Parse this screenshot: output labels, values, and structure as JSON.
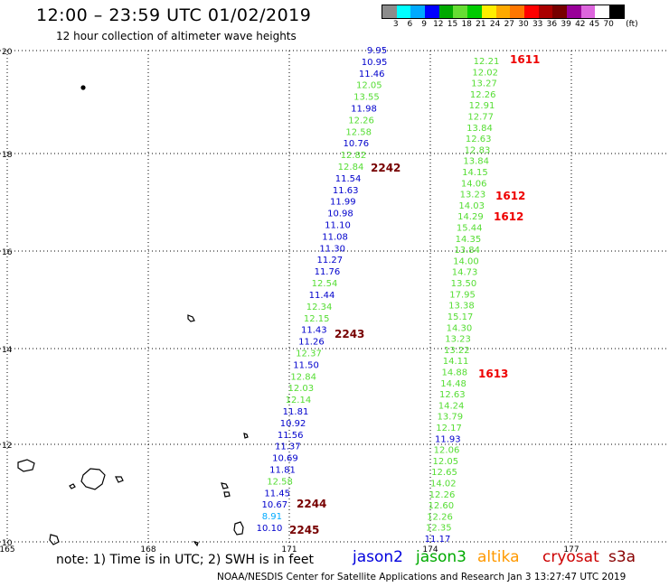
{
  "header": {
    "title": "12:00 – 23:59 UTC 01/02/2019",
    "subtitle": "12 hour collection of altimeter wave heights"
  },
  "legend": {
    "unit_label": "(ft)",
    "colors": [
      "#8c8c8c",
      "#00ffff",
      "#00aaff",
      "#0000ff",
      "#00aa00",
      "#66dd33",
      "#00cc00",
      "#ffee00",
      "#ffaa00",
      "#ff7700",
      "#ff0000",
      "#aa0000",
      "#770000",
      "#990099",
      "#dd66dd",
      "#ffffff",
      "#000000"
    ],
    "labels": [
      "3",
      "6",
      "9",
      "12",
      "15",
      "18",
      "21",
      "24",
      "27",
      "30",
      "33",
      "36",
      "39",
      "42",
      "45",
      "70"
    ]
  },
  "map": {
    "lat_labels": [
      "20",
      "18",
      "16",
      "14",
      "12",
      "10"
    ],
    "lon_labels": [
      "165",
      "168",
      "171",
      "174",
      "177"
    ],
    "jason2_values": [
      "9.95",
      "10.95",
      "11.46",
      "12.05",
      "13.55",
      "11.98",
      "12.26",
      "12.58",
      "10.76",
      "12.82",
      "12.84",
      "11.54",
      "11.63",
      "11.99",
      "10.98",
      "11.10",
      "11.08",
      "11.30",
      "11.27",
      "11.76",
      "12.54",
      "11.44",
      "12.34",
      "12.15",
      "11.43",
      "11.26",
      "12.37",
      "11.50",
      "12.84",
      "12.03",
      "12.14",
      "11.81",
      "10.92",
      "11.56",
      "11.37",
      "10.69",
      "11.81",
      "12.58",
      "11.45",
      "10.67",
      "8.91",
      "10.10"
    ],
    "jason3_values": [
      "12.21",
      "12.02",
      "13.27",
      "12.26",
      "12.91",
      "12.77",
      "13.84",
      "12.63",
      "12.83",
      "13.84",
      "14.15",
      "14.06",
      "13.23",
      "14.03",
      "14.29",
      "15.44",
      "14.35",
      "13.84",
      "14.00",
      "14.73",
      "13.50",
      "17.95",
      "13.38",
      "15.17",
      "14.30",
      "13.23",
      "13.22",
      "14.11",
      "14.88",
      "14.48",
      "12.63",
      "14.24",
      "13.79",
      "12.17",
      "11.93",
      "12.06",
      "12.05",
      "12.65",
      "14.02",
      "12.26",
      "12.60",
      "12.26",
      "12.35",
      "11.17"
    ],
    "time_labels_right": [
      "1611",
      "1612",
      "1612",
      "1613"
    ],
    "time_labels_left": [
      "2242",
      "2243",
      "2244",
      "2245"
    ]
  },
  "footer": {
    "note": "note: 1) Time is in UTC; 2) SWH is in feet",
    "sat_jason2": "jason2",
    "sat_jason3": "jason3",
    "sat_altika": "altika",
    "sat_cryosat": "cryosat",
    "sat_s3a": "s3a",
    "credit": "NOAA/NESDIS Center for Satellite Applications and Research    Jan  3 13:27:47 UTC 2019"
  }
}
